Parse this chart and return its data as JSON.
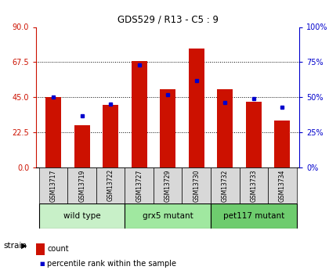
{
  "title": "GDS529 / R13 - C5 : 9",
  "samples": [
    "GSM13717",
    "GSM13719",
    "GSM13722",
    "GSM13727",
    "GSM13729",
    "GSM13730",
    "GSM13732",
    "GSM13733",
    "GSM13734"
  ],
  "counts": [
    45,
    27,
    40,
    68,
    50,
    76,
    50,
    42,
    30
  ],
  "percentiles": [
    50,
    37,
    45,
    73,
    52,
    62,
    46,
    49,
    43
  ],
  "groups": [
    {
      "label": "wild type",
      "start": 0,
      "end": 3,
      "color": "#c8f0c8"
    },
    {
      "label": "grx5 mutant",
      "start": 3,
      "end": 6,
      "color": "#a0e8a0"
    },
    {
      "label": "pet117 mutant",
      "start": 6,
      "end": 9,
      "color": "#6ecc6e"
    }
  ],
  "bar_color": "#cc1100",
  "dot_color": "#0000cc",
  "left_axis_color": "#cc1100",
  "right_axis_color": "#0000cc",
  "left_yticks": [
    0,
    22.5,
    45,
    67.5,
    90
  ],
  "right_yticks": [
    0,
    25,
    50,
    75,
    100
  ],
  "ylim_left": [
    0,
    90
  ],
  "ylim_right": [
    0,
    100
  ],
  "bg_color": "#d8d8d8",
  "bar_width": 0.55,
  "legend_count_label": "count",
  "legend_pct_label": "percentile rank within the sample"
}
